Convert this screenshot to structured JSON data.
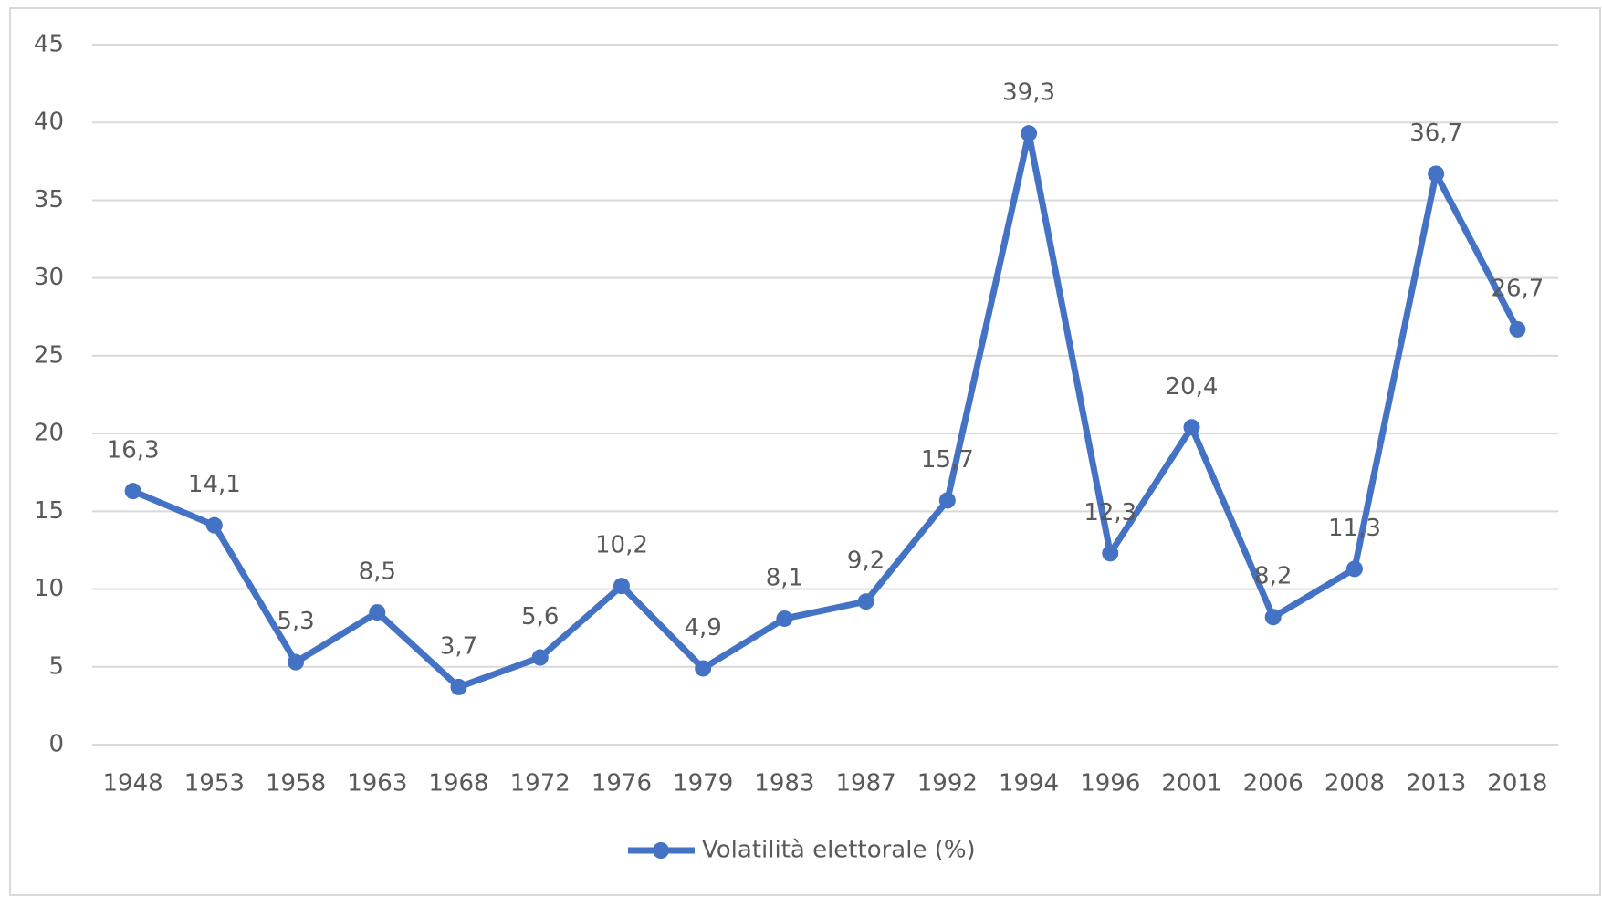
{
  "chart_data": {
    "type": "line",
    "categories": [
      "1948",
      "1953",
      "1958",
      "1963",
      "1968",
      "1972",
      "1976",
      "1979",
      "1983",
      "1987",
      "1992",
      "1994",
      "1996",
      "2001",
      "2006",
      "2008",
      "2013",
      "2018"
    ],
    "series": [
      {
        "name": "Volatilità elettorale (%)",
        "color": "#4472c4",
        "values": [
          16.3,
          14.1,
          5.3,
          8.5,
          3.7,
          5.6,
          10.2,
          4.9,
          8.1,
          9.2,
          15.7,
          39.3,
          12.3,
          20.4,
          8.2,
          11.3,
          36.7,
          26.7
        ],
        "value_labels": [
          "16,3",
          "14,1",
          "5,3",
          "8,5",
          "3,7",
          "5,6",
          "10,2",
          "4,9",
          "8,1",
          "9,2",
          "15,7",
          "39,3",
          "12,3",
          "20,4",
          "8,2",
          "11,3",
          "36,7",
          "26,7"
        ]
      }
    ],
    "ylim": [
      0,
      45
    ],
    "yticks": [
      0,
      5,
      10,
      15,
      20,
      25,
      30,
      35,
      40,
      45
    ],
    "grid": true,
    "legend": "bottom"
  }
}
